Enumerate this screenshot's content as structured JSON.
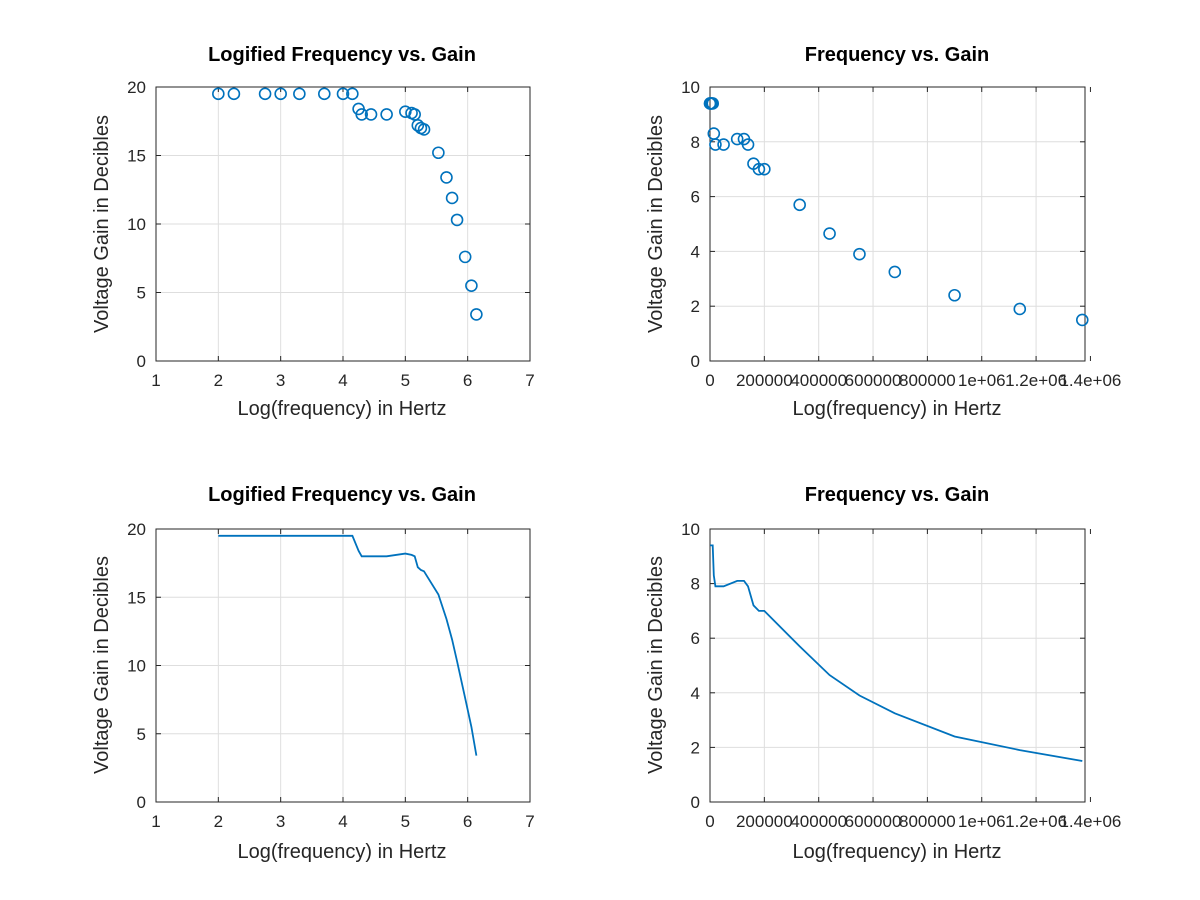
{
  "figure": {
    "colors": {
      "series": "#0072bd",
      "grid": "#dedede",
      "axis": "#262626",
      "background": "#ffffff"
    }
  },
  "chart_data": [
    {
      "type": "scatter",
      "title": "Logified Frequency vs. Gain",
      "xlabel": "Log(frequency) in Hertz",
      "ylabel": "Voltage Gain in Decibles",
      "xlim": [
        1,
        7
      ],
      "ylim": [
        0,
        20
      ],
      "xticks": [
        1,
        2,
        3,
        4,
        5,
        6,
        7
      ],
      "xtick_labels": [
        "1",
        "2",
        "3",
        "4",
        "5",
        "6",
        "7"
      ],
      "yticks": [
        0,
        5,
        10,
        15,
        20
      ],
      "ytick_labels": [
        "0",
        "5",
        "10",
        "15",
        "20"
      ],
      "grid": true,
      "series": [
        {
          "color": "#0072bd",
          "marker": "circle",
          "x": [
            2.0,
            2.25,
            2.75,
            3.0,
            3.3,
            3.7,
            4.0,
            4.15,
            4.25,
            4.3,
            4.45,
            4.7,
            5.0,
            5.1,
            5.15,
            5.2,
            5.25,
            5.3,
            5.53,
            5.66,
            5.75,
            5.83,
            5.96,
            6.06,
            6.14
          ],
          "y": [
            19.5,
            19.5,
            19.5,
            19.5,
            19.5,
            19.5,
            19.5,
            19.5,
            18.4,
            18.0,
            18.0,
            18.0,
            18.2,
            18.1,
            18.0,
            17.2,
            17.0,
            16.9,
            15.2,
            13.4,
            11.9,
            10.3,
            7.6,
            5.5,
            3.4
          ]
        }
      ]
    },
    {
      "type": "scatter",
      "title": "Frequency vs. Gain",
      "xlabel": "Log(frequency) in Hertz",
      "ylabel": "Voltage Gain in Decibles",
      "xlim": [
        0,
        1380000
      ],
      "ylim": [
        0,
        10
      ],
      "xticks": [
        0,
        200000,
        400000,
        600000,
        800000,
        1000000,
        1200000,
        1400000
      ],
      "xtick_labels": [
        "0",
        "200000",
        "400000",
        "600000",
        "800000",
        "1e+06",
        "1.2e+06",
        "1.4e+06"
      ],
      "yticks": [
        0,
        2,
        4,
        6,
        8,
        10
      ],
      "ytick_labels": [
        "0",
        "2",
        "4",
        "6",
        "8",
        "10"
      ],
      "grid": true,
      "series": [
        {
          "color": "#0072bd",
          "marker": "circle",
          "x": [
            100,
            500,
            2000,
            5000,
            10000,
            14000,
            20000,
            50000,
            100000,
            125000,
            140000,
            160000,
            180000,
            200000,
            330000,
            440000,
            550000,
            680000,
            900000,
            1140000,
            1370000
          ],
          "y": [
            9.4,
            9.4,
            9.4,
            9.4,
            9.4,
            8.3,
            7.9,
            7.9,
            8.1,
            8.1,
            7.9,
            7.2,
            7.0,
            7.0,
            5.7,
            4.65,
            3.9,
            3.25,
            2.4,
            1.9,
            1.5
          ]
        }
      ]
    },
    {
      "type": "line",
      "title": "Logified Frequency vs. Gain",
      "xlabel": "Log(frequency) in Hertz",
      "ylabel": "Voltage Gain in Decibles",
      "xlim": [
        1,
        7
      ],
      "ylim": [
        0,
        20
      ],
      "xticks": [
        1,
        2,
        3,
        4,
        5,
        6,
        7
      ],
      "xtick_labels": [
        "1",
        "2",
        "3",
        "4",
        "5",
        "6",
        "7"
      ],
      "yticks": [
        0,
        5,
        10,
        15,
        20
      ],
      "ytick_labels": [
        "0",
        "5",
        "10",
        "15",
        "20"
      ],
      "grid": true,
      "series": [
        {
          "color": "#0072bd",
          "x": [
            2.0,
            2.25,
            2.75,
            3.0,
            3.3,
            3.7,
            4.0,
            4.15,
            4.25,
            4.3,
            4.45,
            4.7,
            5.0,
            5.1,
            5.15,
            5.2,
            5.25,
            5.3,
            5.53,
            5.66,
            5.75,
            5.83,
            5.96,
            6.06,
            6.14
          ],
          "y": [
            19.5,
            19.5,
            19.5,
            19.5,
            19.5,
            19.5,
            19.5,
            19.5,
            18.4,
            18.0,
            18.0,
            18.0,
            18.2,
            18.1,
            18.0,
            17.2,
            17.0,
            16.9,
            15.2,
            13.4,
            11.9,
            10.3,
            7.6,
            5.5,
            3.4
          ]
        }
      ]
    },
    {
      "type": "line",
      "title": "Frequency vs. Gain",
      "xlabel": "Log(frequency) in Hertz",
      "ylabel": "Voltage Gain in Decibles",
      "xlim": [
        0,
        1380000
      ],
      "ylim": [
        0,
        10
      ],
      "xticks": [
        0,
        200000,
        400000,
        600000,
        800000,
        1000000,
        1200000,
        1400000
      ],
      "xtick_labels": [
        "0",
        "200000",
        "400000",
        "600000",
        "800000",
        "1e+06",
        "1.2e+06",
        "1.4e+06"
      ],
      "yticks": [
        0,
        2,
        4,
        6,
        8,
        10
      ],
      "ytick_labels": [
        "0",
        "2",
        "4",
        "6",
        "8",
        "10"
      ],
      "grid": true,
      "series": [
        {
          "color": "#0072bd",
          "x": [
            100,
            500,
            2000,
            5000,
            10000,
            14000,
            20000,
            50000,
            100000,
            125000,
            140000,
            160000,
            180000,
            200000,
            330000,
            440000,
            550000,
            680000,
            900000,
            1140000,
            1370000
          ],
          "y": [
            9.4,
            9.4,
            9.4,
            9.4,
            9.4,
            8.3,
            7.9,
            7.9,
            8.1,
            8.1,
            7.9,
            7.2,
            7.0,
            7.0,
            5.7,
            4.65,
            3.9,
            3.25,
            2.4,
            1.9,
            1.5
          ]
        }
      ]
    }
  ]
}
